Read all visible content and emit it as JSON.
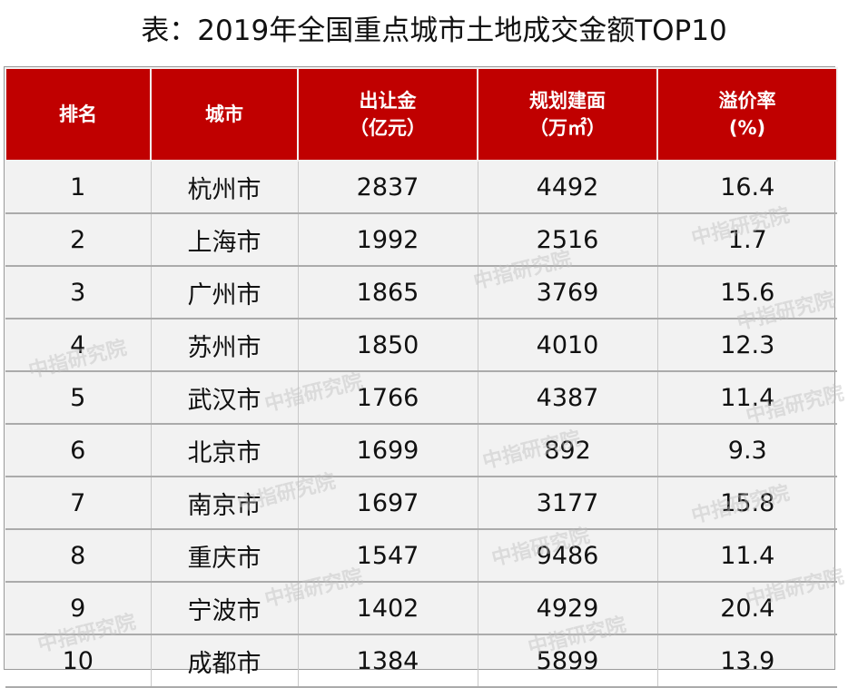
{
  "title": "表：2019年全国重点城市土地成交金额TOP10",
  "headers": [
    {
      "line1": "排名",
      "line2": ""
    },
    {
      "line1": "城市",
      "line2": ""
    },
    {
      "line1": "出让金",
      "line2": "（亿元）"
    },
    {
      "line1": "规划建面",
      "line2": "（万㎡）"
    },
    {
      "line1": "溢价率",
      "line2": "(%)"
    }
  ],
  "rows": [
    {
      "rank": "1",
      "city": "杭州市",
      "price": "2837",
      "area": "4492",
      "premium": "16.4"
    },
    {
      "rank": "2",
      "city": "上海市",
      "price": "1992",
      "area": "2516",
      "premium": "1.7"
    },
    {
      "rank": "3",
      "city": "广州市",
      "price": "1865",
      "area": "3769",
      "premium": "15.6"
    },
    {
      "rank": "4",
      "city": "苏州市",
      "price": "1850",
      "area": "4010",
      "premium": "12.3"
    },
    {
      "rank": "5",
      "city": "武汉市",
      "price": "1766",
      "area": "4387",
      "premium": "11.4"
    },
    {
      "rank": "6",
      "city": "北京市",
      "price": "1699",
      "area": "892",
      "premium": "9.3"
    },
    {
      "rank": "7",
      "city": "南京市",
      "price": "1697",
      "area": "3177",
      "premium": "15.8"
    },
    {
      "rank": "8",
      "city": "重庆市",
      "price": "1547",
      "area": "9486",
      "premium": "11.4"
    },
    {
      "rank": "9",
      "city": "宁波市",
      "price": "1402",
      "area": "4929",
      "premium": "20.4"
    },
    {
      "rank": "10",
      "city": "成都市",
      "price": "1384",
      "area": "5899",
      "premium": "13.9"
    }
  ],
  "watermark": "中指研究院",
  "colors": {
    "header_bg": "#c00000",
    "header_text": "#ffffff",
    "row_bg": "#f2f2f2"
  }
}
